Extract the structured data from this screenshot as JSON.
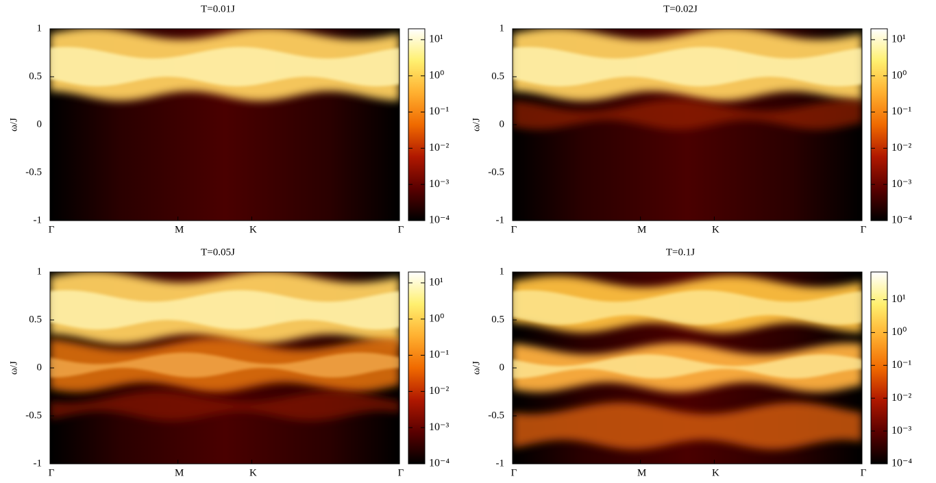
{
  "chart_data": [
    {
      "type": "heatmap",
      "title": "T=0.01J",
      "ylabel": "ω/J",
      "xlim": [
        0,
        2.366
      ],
      "xticks": [
        {
          "value": 0,
          "label": "Γ"
        },
        {
          "value": 0.866,
          "label": "M"
        },
        {
          "value": 1.366,
          "label": "K"
        },
        {
          "value": 2.366,
          "label": "Γ"
        }
      ],
      "ylim": [
        -1,
        1
      ],
      "yticks": [
        -1,
        -0.5,
        0,
        0.5,
        1
      ],
      "colorbar": {
        "log": true,
        "clim": [
          0.0001,
          20
        ],
        "colormap": [
          "#000000",
          "#5a0000",
          "#b01800",
          "#f06a00",
          "#ffb030",
          "#fff070",
          "#ffffff"
        ],
        "ticks": [
          {
            "value": 0.0001,
            "label": "10⁻⁴"
          },
          {
            "value": 0.001,
            "label": "10⁻³"
          },
          {
            "value": 0.01,
            "label": "10⁻²"
          },
          {
            "value": 0.1,
            "label": "10⁻¹"
          },
          {
            "value": 1,
            "label": "10⁰"
          },
          {
            "value": 10,
            "label": "10¹"
          }
        ]
      }
    },
    {
      "type": "heatmap",
      "title": "T=0.02J",
      "ylabel": "ω/J",
      "xlim": [
        0,
        2.366
      ],
      "xticks": [
        {
          "value": 0,
          "label": "Γ"
        },
        {
          "value": 0.866,
          "label": "M"
        },
        {
          "value": 1.366,
          "label": "K"
        },
        {
          "value": 2.366,
          "label": "Γ"
        }
      ],
      "ylim": [
        -1,
        1
      ],
      "yticks": [
        -1,
        -0.5,
        0,
        0.5,
        1
      ],
      "colorbar": {
        "log": true,
        "clim": [
          0.0001,
          20
        ],
        "colormap": [
          "#000000",
          "#5a0000",
          "#b01800",
          "#f06a00",
          "#ffb030",
          "#fff070",
          "#ffffff"
        ],
        "ticks": [
          {
            "value": 0.0001,
            "label": "10⁻⁴"
          },
          {
            "value": 0.001,
            "label": "10⁻³"
          },
          {
            "value": 0.01,
            "label": "10⁻²"
          },
          {
            "value": 0.1,
            "label": "10⁻¹"
          },
          {
            "value": 1,
            "label": "10⁰"
          },
          {
            "value": 10,
            "label": "10¹"
          }
        ]
      }
    },
    {
      "type": "heatmap",
      "title": "T=0.05J",
      "ylabel": "ω/J",
      "xlim": [
        0,
        2.366
      ],
      "xticks": [
        {
          "value": 0,
          "label": "Γ"
        },
        {
          "value": 0.866,
          "label": "M"
        },
        {
          "value": 1.366,
          "label": "K"
        },
        {
          "value": 2.366,
          "label": "Γ"
        }
      ],
      "ylim": [
        -1,
        1
      ],
      "yticks": [
        -1,
        -0.5,
        0,
        0.5,
        1
      ],
      "colorbar": {
        "log": true,
        "clim": [
          0.0001,
          20
        ],
        "colormap": [
          "#000000",
          "#5a0000",
          "#b01800",
          "#f06a00",
          "#ffb030",
          "#fff070",
          "#ffffff"
        ],
        "ticks": [
          {
            "value": 0.0001,
            "label": "10⁻⁴"
          },
          {
            "value": 0.001,
            "label": "10⁻³"
          },
          {
            "value": 0.01,
            "label": "10⁻²"
          },
          {
            "value": 0.1,
            "label": "10⁻¹"
          },
          {
            "value": 1,
            "label": "10⁰"
          },
          {
            "value": 10,
            "label": "10¹"
          }
        ]
      }
    },
    {
      "type": "heatmap",
      "title": "T=0.1J",
      "ylabel": "ω/J",
      "xlim": [
        0,
        2.366
      ],
      "xticks": [
        {
          "value": 0,
          "label": "Γ"
        },
        {
          "value": 0.866,
          "label": "M"
        },
        {
          "value": 1.366,
          "label": "K"
        },
        {
          "value": 2.366,
          "label": "Γ"
        }
      ],
      "ylim": [
        -1,
        1
      ],
      "yticks": [
        -1,
        -0.5,
        0,
        0.5,
        1
      ],
      "colorbar": {
        "log": true,
        "clim": [
          0.0001,
          70
        ],
        "colormap": [
          "#000000",
          "#5a0000",
          "#b01800",
          "#f06a00",
          "#ffb030",
          "#fff070",
          "#ffffff"
        ],
        "ticks": [
          {
            "value": 0.0001,
            "label": "10⁻⁴"
          },
          {
            "value": 0.001,
            "label": "10⁻³"
          },
          {
            "value": 0.01,
            "label": "10⁻²"
          },
          {
            "value": 0.1,
            "label": "10⁻¹"
          },
          {
            "value": 1,
            "label": "10⁰"
          },
          {
            "value": 10,
            "label": "10¹"
          }
        ]
      }
    }
  ]
}
